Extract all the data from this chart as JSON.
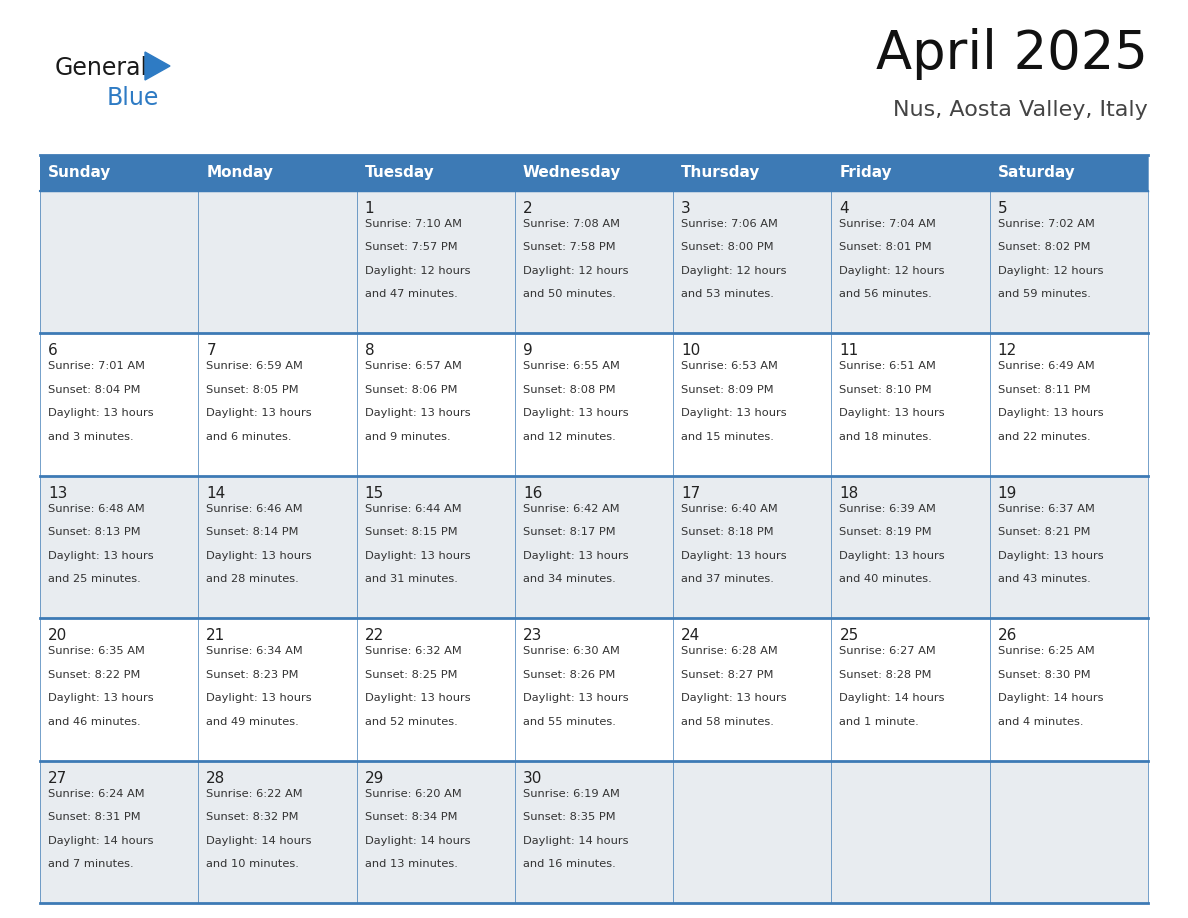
{
  "title": "April 2025",
  "subtitle": "Nus, Aosta Valley, Italy",
  "header_bg": "#3d7ab5",
  "header_text_color": "#ffffff",
  "cell_bg_odd": "#e8ecf0",
  "cell_bg_even": "#ffffff",
  "border_color": "#3d7ab5",
  "thick_line_color": "#3d7ab5",
  "text_color": "#333333",
  "day_num_color": "#222222",
  "days_of_week": [
    "Sunday",
    "Monday",
    "Tuesday",
    "Wednesday",
    "Thursday",
    "Friday",
    "Saturday"
  ],
  "calendar_data": [
    [
      {
        "day": "",
        "sunrise": "",
        "sunset": "",
        "daylight": ""
      },
      {
        "day": "",
        "sunrise": "",
        "sunset": "",
        "daylight": ""
      },
      {
        "day": "1",
        "sunrise": "7:10 AM",
        "sunset": "7:57 PM",
        "daylight": "12 hours and 47 minutes."
      },
      {
        "day": "2",
        "sunrise": "7:08 AM",
        "sunset": "7:58 PM",
        "daylight": "12 hours and 50 minutes."
      },
      {
        "day": "3",
        "sunrise": "7:06 AM",
        "sunset": "8:00 PM",
        "daylight": "12 hours and 53 minutes."
      },
      {
        "day": "4",
        "sunrise": "7:04 AM",
        "sunset": "8:01 PM",
        "daylight": "12 hours and 56 minutes."
      },
      {
        "day": "5",
        "sunrise": "7:02 AM",
        "sunset": "8:02 PM",
        "daylight": "12 hours and 59 minutes."
      }
    ],
    [
      {
        "day": "6",
        "sunrise": "7:01 AM",
        "sunset": "8:04 PM",
        "daylight": "13 hours and 3 minutes."
      },
      {
        "day": "7",
        "sunrise": "6:59 AM",
        "sunset": "8:05 PM",
        "daylight": "13 hours and 6 minutes."
      },
      {
        "day": "8",
        "sunrise": "6:57 AM",
        "sunset": "8:06 PM",
        "daylight": "13 hours and 9 minutes."
      },
      {
        "day": "9",
        "sunrise": "6:55 AM",
        "sunset": "8:08 PM",
        "daylight": "13 hours and 12 minutes."
      },
      {
        "day": "10",
        "sunrise": "6:53 AM",
        "sunset": "8:09 PM",
        "daylight": "13 hours and 15 minutes."
      },
      {
        "day": "11",
        "sunrise": "6:51 AM",
        "sunset": "8:10 PM",
        "daylight": "13 hours and 18 minutes."
      },
      {
        "day": "12",
        "sunrise": "6:49 AM",
        "sunset": "8:11 PM",
        "daylight": "13 hours and 22 minutes."
      }
    ],
    [
      {
        "day": "13",
        "sunrise": "6:48 AM",
        "sunset": "8:13 PM",
        "daylight": "13 hours and 25 minutes."
      },
      {
        "day": "14",
        "sunrise": "6:46 AM",
        "sunset": "8:14 PM",
        "daylight": "13 hours and 28 minutes."
      },
      {
        "day": "15",
        "sunrise": "6:44 AM",
        "sunset": "8:15 PM",
        "daylight": "13 hours and 31 minutes."
      },
      {
        "day": "16",
        "sunrise": "6:42 AM",
        "sunset": "8:17 PM",
        "daylight": "13 hours and 34 minutes."
      },
      {
        "day": "17",
        "sunrise": "6:40 AM",
        "sunset": "8:18 PM",
        "daylight": "13 hours and 37 minutes."
      },
      {
        "day": "18",
        "sunrise": "6:39 AM",
        "sunset": "8:19 PM",
        "daylight": "13 hours and 40 minutes."
      },
      {
        "day": "19",
        "sunrise": "6:37 AM",
        "sunset": "8:21 PM",
        "daylight": "13 hours and 43 minutes."
      }
    ],
    [
      {
        "day": "20",
        "sunrise": "6:35 AM",
        "sunset": "8:22 PM",
        "daylight": "13 hours and 46 minutes."
      },
      {
        "day": "21",
        "sunrise": "6:34 AM",
        "sunset": "8:23 PM",
        "daylight": "13 hours and 49 minutes."
      },
      {
        "day": "22",
        "sunrise": "6:32 AM",
        "sunset": "8:25 PM",
        "daylight": "13 hours and 52 minutes."
      },
      {
        "day": "23",
        "sunrise": "6:30 AM",
        "sunset": "8:26 PM",
        "daylight": "13 hours and 55 minutes."
      },
      {
        "day": "24",
        "sunrise": "6:28 AM",
        "sunset": "8:27 PM",
        "daylight": "13 hours and 58 minutes."
      },
      {
        "day": "25",
        "sunrise": "6:27 AM",
        "sunset": "8:28 PM",
        "daylight": "14 hours and 1 minute."
      },
      {
        "day": "26",
        "sunrise": "6:25 AM",
        "sunset": "8:30 PM",
        "daylight": "14 hours and 4 minutes."
      }
    ],
    [
      {
        "day": "27",
        "sunrise": "6:24 AM",
        "sunset": "8:31 PM",
        "daylight": "14 hours and 7 minutes."
      },
      {
        "day": "28",
        "sunrise": "6:22 AM",
        "sunset": "8:32 PM",
        "daylight": "14 hours and 10 minutes."
      },
      {
        "day": "29",
        "sunrise": "6:20 AM",
        "sunset": "8:34 PM",
        "daylight": "14 hours and 13 minutes."
      },
      {
        "day": "30",
        "sunrise": "6:19 AM",
        "sunset": "8:35 PM",
        "daylight": "14 hours and 16 minutes."
      },
      {
        "day": "",
        "sunrise": "",
        "sunset": "",
        "daylight": ""
      },
      {
        "day": "",
        "sunrise": "",
        "sunset": "",
        "daylight": ""
      },
      {
        "day": "",
        "sunrise": "",
        "sunset": "",
        "daylight": ""
      }
    ]
  ],
  "logo_text_general": "General",
  "logo_text_blue": "Blue",
  "logo_color_general": "#1a1a1a",
  "logo_color_blue": "#2e7bc4",
  "logo_triangle_color": "#2e7bc4",
  "figwidth": 11.88,
  "figheight": 9.18
}
